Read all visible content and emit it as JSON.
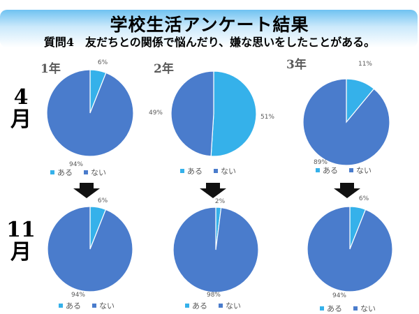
{
  "title": "学校生活アンケート結果",
  "subtitle": "質問4　友だちとの関係で悩んだり、嫌な思いをしたことがある。",
  "grades": [
    "1年",
    "2年",
    "3年"
  ],
  "months": [
    "4",
    "月",
    "11",
    "月"
  ],
  "colors": {
    "aru": "#35b1ea",
    "nai": "#4a7ccc",
    "arrow": "#111111"
  },
  "chart_data": [
    {
      "type": "pie",
      "panel": "4月 1年",
      "categories": [
        "ある",
        "ない"
      ],
      "values": [
        6,
        94
      ],
      "labels": [
        "6%",
        "94%"
      ]
    },
    {
      "type": "pie",
      "panel": "4月 2年",
      "categories": [
        "ある",
        "ない"
      ],
      "values": [
        51,
        49
      ],
      "labels": [
        "51%",
        "49%"
      ]
    },
    {
      "type": "pie",
      "panel": "4月 3年",
      "categories": [
        "ある",
        "ない"
      ],
      "values": [
        11,
        89
      ],
      "labels": [
        "11%",
        "89%"
      ]
    },
    {
      "type": "pie",
      "panel": "11月 1年",
      "categories": [
        "ある",
        "ない"
      ],
      "values": [
        6,
        94
      ],
      "labels": [
        "6%",
        "94%"
      ]
    },
    {
      "type": "pie",
      "panel": "11月 2年",
      "categories": [
        "ある",
        "ない"
      ],
      "values": [
        2,
        98
      ],
      "labels": [
        "2%",
        "98%"
      ]
    },
    {
      "type": "pie",
      "panel": "11月 3年",
      "categories": [
        "ある",
        "ない"
      ],
      "values": [
        6,
        94
      ],
      "labels": [
        "6%",
        "94%"
      ]
    }
  ]
}
